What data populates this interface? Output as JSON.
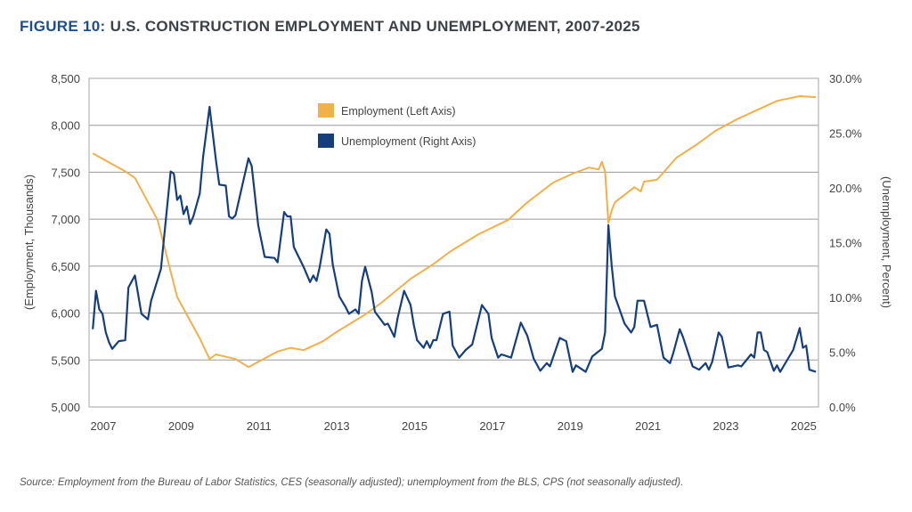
{
  "title": {
    "figure": "FIGURE 10:",
    "text": "U.S. CONSTRUCTION EMPLOYMENT AND UNEMPLOYMENT, 2007-2025"
  },
  "source": "Source: Employment from the Bureau of Labor Statistics, CES (seasonally adjusted); unemployment from the BLS, CPS (not seasonally adjusted).",
  "chart_data": {
    "type": "line",
    "title": "U.S. CONSTRUCTION EMPLOYMENT AND UNEMPLOYMENT, 2007-2025",
    "ylabel": "(Employment, Thousands)",
    "y2label": "(Unemployment, Percent)",
    "ylim": [
      5000,
      8500
    ],
    "y2lim": [
      0,
      30
    ],
    "xlim": [
      "2007-01",
      "2025-08"
    ],
    "grid": true,
    "legend_position": "top-center",
    "x_tick_labels": [
      "2007",
      "2009",
      "2011",
      "2013",
      "2015",
      "2017",
      "2019",
      "2021",
      "2023",
      "2025"
    ],
    "y_tick_labels": [
      "5,000",
      "5,500",
      "6,000",
      "6,500",
      "7,000",
      "7,500",
      "8,000",
      "8,500"
    ],
    "y2_tick_labels": [
      "0.0%",
      "5.0%",
      "10.0%",
      "15.0%",
      "20.0%",
      "25.0%",
      "30.0%"
    ],
    "series": [
      {
        "name": "Employment (Left Axis)",
        "axis": "left",
        "color": "#f0b04b",
        "points": [
          [
            "2007-01",
            7700
          ],
          [
            "2007-11",
            7510
          ],
          [
            "2008-02",
            7440
          ],
          [
            "2008-09",
            6990
          ],
          [
            "2009-03",
            6170
          ],
          [
            "2009-10",
            5730
          ],
          [
            "2010-01",
            5510
          ],
          [
            "2010-03",
            5560
          ],
          [
            "2010-09",
            5510
          ],
          [
            "2011-01",
            5425
          ],
          [
            "2011-10",
            5590
          ],
          [
            "2012-02",
            5630
          ],
          [
            "2012-06",
            5605
          ],
          [
            "2012-12",
            5700
          ],
          [
            "2013-04",
            5795
          ],
          [
            "2014-01",
            5985
          ],
          [
            "2014-06",
            6110
          ],
          [
            "2015-03",
            6365
          ],
          [
            "2015-10",
            6520
          ],
          [
            "2016-03",
            6650
          ],
          [
            "2016-12",
            6840
          ],
          [
            "2017-09",
            6990
          ],
          [
            "2018-03",
            7180
          ],
          [
            "2018-11",
            7390
          ],
          [
            "2019-05",
            7485
          ],
          [
            "2019-10",
            7550
          ],
          [
            "2020-01",
            7530
          ],
          [
            "2020-02",
            7610
          ],
          [
            "2020-03",
            7510
          ],
          [
            "2020-04",
            6960
          ],
          [
            "2020-05",
            7090
          ],
          [
            "2020-06",
            7180
          ],
          [
            "2020-12",
            7340
          ],
          [
            "2021-02",
            7295
          ],
          [
            "2021-03",
            7400
          ],
          [
            "2021-07",
            7420
          ],
          [
            "2022-01",
            7655
          ],
          [
            "2022-07",
            7790
          ],
          [
            "2023-01",
            7940
          ],
          [
            "2023-08",
            8070
          ],
          [
            "2024-02",
            8165
          ],
          [
            "2024-08",
            8260
          ],
          [
            "2025-03",
            8310
          ],
          [
            "2025-08",
            8300
          ]
        ]
      },
      {
        "name": "Unemployment (Right Axis)",
        "axis": "right",
        "color": "#163e7d",
        "points": [
          [
            "2007-01",
            7.1
          ],
          [
            "2007-02",
            10.6
          ],
          [
            "2007-03",
            8.9
          ],
          [
            "2007-04",
            8.5
          ],
          [
            "2007-05",
            6.8
          ],
          [
            "2007-06",
            5.9
          ],
          [
            "2007-07",
            5.3
          ],
          [
            "2007-09",
            6.0
          ],
          [
            "2007-11",
            6.1
          ],
          [
            "2007-12",
            10.9
          ],
          [
            "2008-02",
            12.0
          ],
          [
            "2008-04",
            8.5
          ],
          [
            "2008-06",
            8.0
          ],
          [
            "2008-07",
            9.7
          ],
          [
            "2008-10",
            12.6
          ],
          [
            "2009-01",
            21.5
          ],
          [
            "2009-02",
            21.3
          ],
          [
            "2009-03",
            18.9
          ],
          [
            "2009-04",
            19.3
          ],
          [
            "2009-05",
            17.6
          ],
          [
            "2009-06",
            18.3
          ],
          [
            "2009-07",
            16.7
          ],
          [
            "2009-08",
            17.4
          ],
          [
            "2009-10",
            19.5
          ],
          [
            "2009-11",
            22.8
          ],
          [
            "2010-01",
            27.4
          ],
          [
            "2010-03",
            22.5
          ],
          [
            "2010-04",
            20.3
          ],
          [
            "2010-06",
            20.2
          ],
          [
            "2010-07",
            17.4
          ],
          [
            "2010-08",
            17.2
          ],
          [
            "2010-09",
            17.5
          ],
          [
            "2011-01",
            22.7
          ],
          [
            "2011-02",
            22.0
          ],
          [
            "2011-04",
            16.6
          ],
          [
            "2011-06",
            13.7
          ],
          [
            "2011-09",
            13.6
          ],
          [
            "2011-10",
            13.2
          ],
          [
            "2011-12",
            17.8
          ],
          [
            "2012-01",
            17.4
          ],
          [
            "2012-02",
            17.4
          ],
          [
            "2012-03",
            14.6
          ],
          [
            "2012-06",
            12.8
          ],
          [
            "2012-08",
            11.4
          ],
          [
            "2012-09",
            12.0
          ],
          [
            "2012-10",
            11.5
          ],
          [
            "2012-11",
            12.8
          ],
          [
            "2013-01",
            16.2
          ],
          [
            "2013-02",
            15.8
          ],
          [
            "2013-03",
            13.0
          ],
          [
            "2013-05",
            10.1
          ],
          [
            "2013-07",
            9.1
          ],
          [
            "2013-08",
            8.5
          ],
          [
            "2013-10",
            8.9
          ],
          [
            "2013-11",
            8.5
          ],
          [
            "2013-12",
            11.5
          ],
          [
            "2014-01",
            12.8
          ],
          [
            "2014-03",
            10.5
          ],
          [
            "2014-04",
            8.7
          ],
          [
            "2014-07",
            7.5
          ],
          [
            "2014-08",
            7.6
          ],
          [
            "2014-10",
            6.4
          ],
          [
            "2014-11",
            8.1
          ],
          [
            "2015-01",
            10.6
          ],
          [
            "2015-03",
            9.3
          ],
          [
            "2015-04",
            7.5
          ],
          [
            "2015-05",
            6.1
          ],
          [
            "2015-07",
            5.4
          ],
          [
            "2015-08",
            6.0
          ],
          [
            "2015-09",
            5.4
          ],
          [
            "2015-10",
            6.1
          ],
          [
            "2015-11",
            6.1
          ],
          [
            "2016-01",
            8.5
          ],
          [
            "2016-03",
            8.7
          ],
          [
            "2016-04",
            5.6
          ],
          [
            "2016-06",
            4.5
          ],
          [
            "2016-08",
            5.2
          ],
          [
            "2016-10",
            5.7
          ],
          [
            "2017-01",
            9.3
          ],
          [
            "2017-03",
            8.5
          ],
          [
            "2017-04",
            6.3
          ],
          [
            "2017-06",
            4.5
          ],
          [
            "2017-07",
            4.8
          ],
          [
            "2017-10",
            4.5
          ],
          [
            "2018-01",
            7.7
          ],
          [
            "2018-03",
            6.5
          ],
          [
            "2018-05",
            4.4
          ],
          [
            "2018-07",
            3.3
          ],
          [
            "2018-09",
            4.0
          ],
          [
            "2018-10",
            3.7
          ],
          [
            "2019-01",
            6.3
          ],
          [
            "2019-03",
            6.0
          ],
          [
            "2019-05",
            3.2
          ],
          [
            "2019-06",
            3.8
          ],
          [
            "2019-09",
            3.2
          ],
          [
            "2019-11",
            4.6
          ],
          [
            "2020-02",
            5.3
          ],
          [
            "2020-03",
            6.8
          ],
          [
            "2020-04",
            16.6
          ],
          [
            "2020-05",
            13.0
          ],
          [
            "2020-06",
            10.1
          ],
          [
            "2020-09",
            7.6
          ],
          [
            "2020-11",
            6.8
          ],
          [
            "2020-12",
            7.3
          ],
          [
            "2021-01",
            9.7
          ],
          [
            "2021-03",
            9.7
          ],
          [
            "2021-05",
            7.3
          ],
          [
            "2021-07",
            7.5
          ],
          [
            "2021-09",
            4.5
          ],
          [
            "2021-11",
            4.0
          ],
          [
            "2021-12",
            4.9
          ],
          [
            "2022-02",
            7.1
          ],
          [
            "2022-03",
            6.4
          ],
          [
            "2022-06",
            3.7
          ],
          [
            "2022-08",
            3.4
          ],
          [
            "2022-10",
            4.0
          ],
          [
            "2022-11",
            3.4
          ],
          [
            "2022-12",
            4.1
          ],
          [
            "2023-02",
            6.8
          ],
          [
            "2023-03",
            6.4
          ],
          [
            "2023-05",
            3.6
          ],
          [
            "2023-08",
            3.8
          ],
          [
            "2023-09",
            3.7
          ],
          [
            "2023-12",
            4.8
          ],
          [
            "2024-01",
            4.5
          ],
          [
            "2024-02",
            6.8
          ],
          [
            "2024-03",
            6.8
          ],
          [
            "2024-04",
            5.2
          ],
          [
            "2024-05",
            5.0
          ],
          [
            "2024-07",
            3.3
          ],
          [
            "2024-08",
            3.8
          ],
          [
            "2024-09",
            3.2
          ],
          [
            "2025-01",
            5.2
          ],
          [
            "2025-03",
            7.2
          ],
          [
            "2025-04",
            5.4
          ],
          [
            "2025-05",
            5.6
          ],
          [
            "2025-06",
            3.4
          ],
          [
            "2025-08",
            3.2
          ]
        ]
      }
    ]
  }
}
